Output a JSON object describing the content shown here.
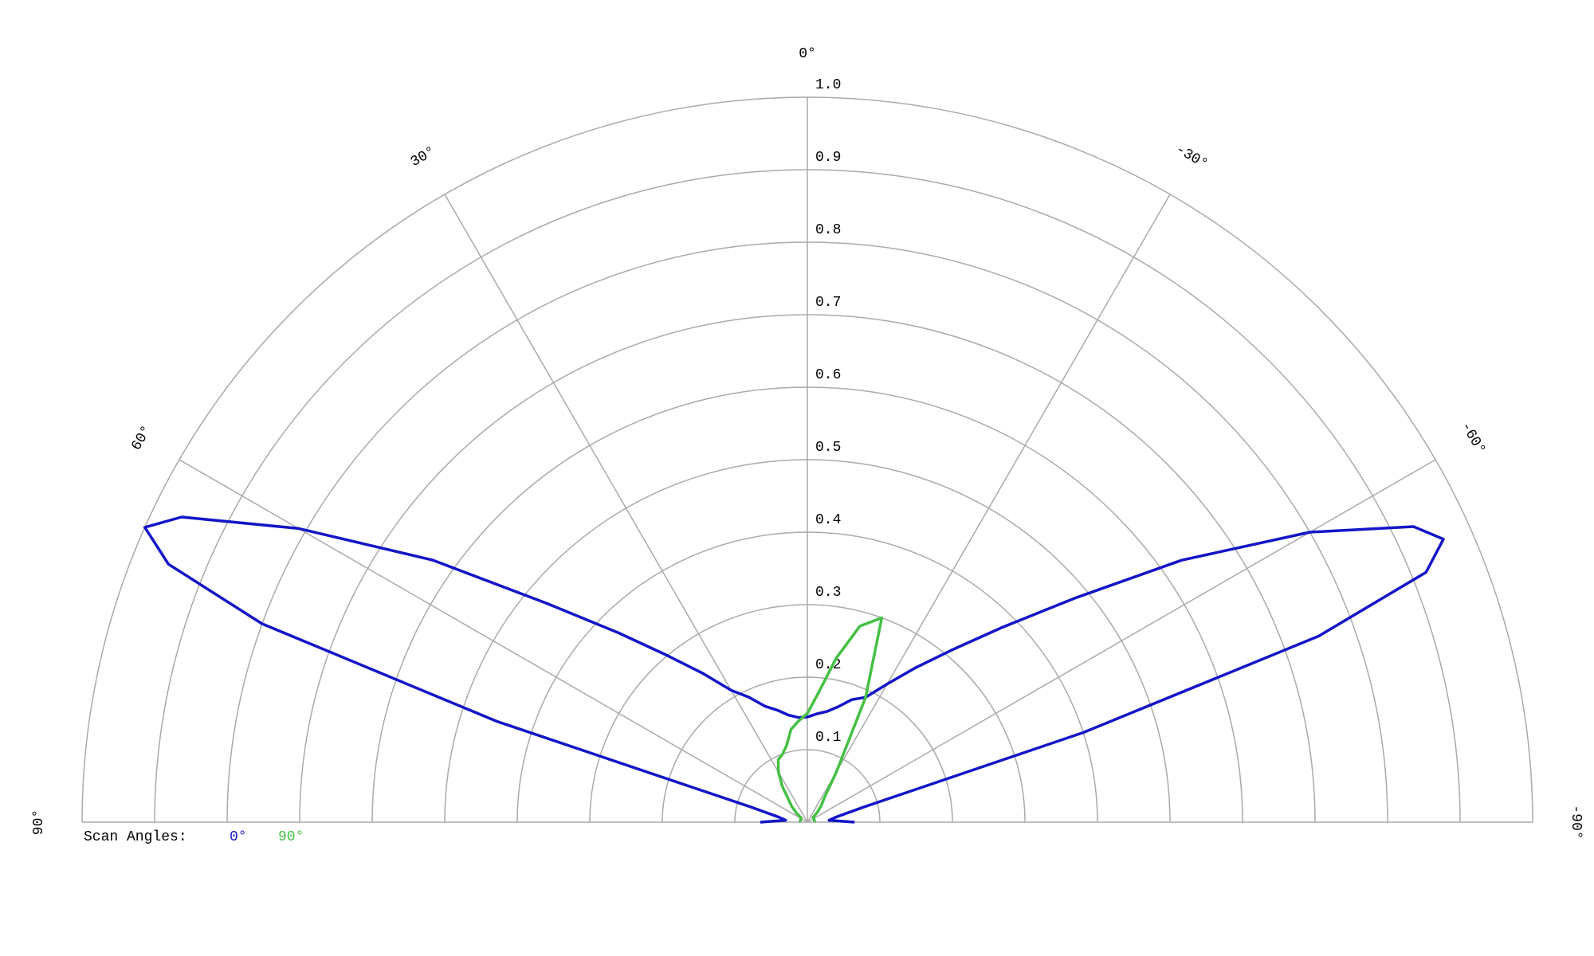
{
  "chart_data": {
    "type": "polar",
    "x": [
      90,
      85,
      80,
      75,
      72,
      70,
      68,
      66,
      64,
      60,
      55,
      50,
      45,
      40,
      35,
      30,
      25,
      20,
      15,
      10,
      5,
      0,
      -5,
      -10,
      -15,
      -20,
      -25,
      -30,
      -35,
      -40,
      -45,
      -50,
      -55,
      -60,
      -64,
      -66,
      -68,
      -70,
      -72,
      -75,
      -80,
      -85,
      -90
    ],
    "series": [
      {
        "name": "0°",
        "color": "#1414c8",
        "values": [
          0.065,
          0.03,
          0.04,
          0.08,
          0.45,
          0.8,
          0.95,
          1.0,
          0.96,
          0.81,
          0.63,
          0.47,
          0.37,
          0.3,
          0.25,
          0.21,
          0.19,
          0.17,
          0.16,
          0.15,
          0.145,
          0.145,
          0.15,
          0.155,
          0.165,
          0.18,
          0.19,
          0.22,
          0.26,
          0.31,
          0.38,
          0.48,
          0.63,
          0.8,
          0.93,
          0.96,
          0.92,
          0.75,
          0.4,
          0.08,
          0.04,
          0.03,
          0.065
        ]
      },
      {
        "name": "90°",
        "color": "#44c044",
        "values": [
          0.01,
          0.01,
          0.01,
          0.01,
          0.01,
          0.01,
          0.01,
          0.01,
          0.01,
          0.01,
          0.01,
          0.02,
          0.03,
          0.04,
          0.06,
          0.08,
          0.095,
          0.1,
          0.11,
          0.13,
          0.14,
          0.15,
          0.18,
          0.23,
          0.28,
          0.3,
          0.19,
          0.08,
          0.04,
          0.03,
          0.02,
          0.01,
          0.01,
          0.01,
          0.01,
          0.01,
          0.01,
          0.01,
          0.01,
          0.01,
          0.01,
          0.01,
          0.01
        ]
      }
    ],
    "rlim": [
      0,
      1
    ],
    "rticks": [
      0.1,
      0.2,
      0.3,
      0.4,
      0.5,
      0.6,
      0.7,
      0.8,
      0.9,
      {
        "value": 1,
        "label": "1.0"
      }
    ],
    "xticks": [
      {
        "value": 90,
        "label": "90°"
      },
      {
        "value": 60,
        "label": "60°"
      },
      {
        "value": 30,
        "label": "30°"
      },
      {
        "value": 0,
        "label": "0°"
      },
      {
        "value": -30,
        "label": "-30°"
      },
      {
        "value": -60,
        "label": "-60°"
      },
      {
        "value": -90,
        "label": "-90°"
      }
    ],
    "legend_title": "Scan Angles:",
    "grid": true
  }
}
